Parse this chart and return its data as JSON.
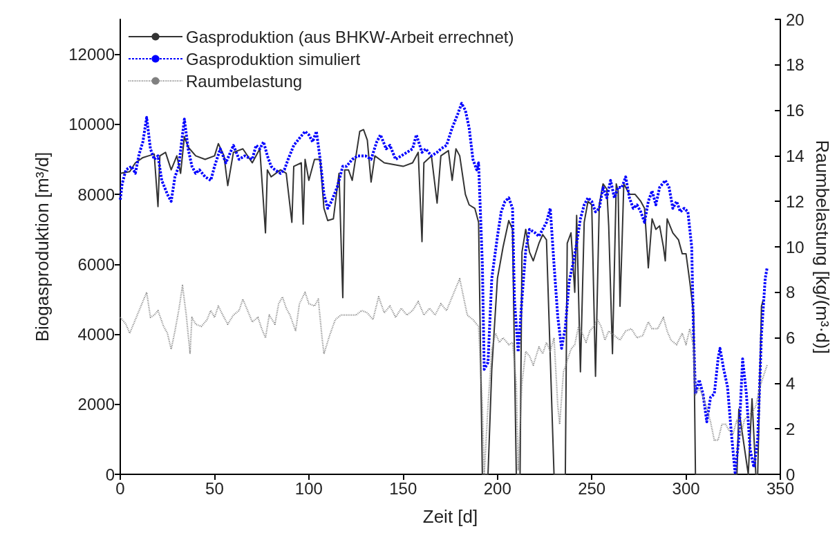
{
  "chart_data": {
    "type": "line",
    "xlabel": "Zeit [d]",
    "ylabel": "Biogasproduktion [m³/d]",
    "y2label": "Raumbelastung [kg/(m³·d)]",
    "xlim": [
      0,
      350
    ],
    "xticks": [
      0,
      50,
      100,
      150,
      200,
      250,
      300,
      350
    ],
    "ylim": [
      0,
      13000
    ],
    "yticks": [
      0,
      2000,
      4000,
      6000,
      8000,
      10000,
      12000
    ],
    "y2lim": [
      0,
      20
    ],
    "y2ticks": [
      0,
      2,
      4,
      6,
      8,
      10,
      12,
      14,
      16,
      18,
      20
    ],
    "grid": false,
    "legend": "top left",
    "marker": "none",
    "series": [
      {
        "name": "Gasproduktion (aus BHKW-Arbeit errechnet)",
        "color": "#333333",
        "line_style": "solid",
        "x": [
          0,
          5,
          8,
          12,
          15,
          18,
          20,
          21,
          24,
          27,
          30,
          32,
          34,
          36,
          40,
          45,
          50,
          52,
          55,
          57,
          60,
          65,
          70,
          74,
          77,
          78,
          80,
          85,
          88,
          91,
          92,
          96,
          97,
          98,
          100,
          103,
          106,
          108,
          110,
          113,
          116,
          118,
          119,
          121,
          123,
          125,
          127,
          129,
          131,
          133,
          135,
          140,
          145,
          150,
          155,
          158,
          160,
          161,
          165,
          168,
          170,
          174,
          176,
          178,
          180,
          183,
          185,
          188,
          190,
          192,
          195,
          197,
          200,
          203,
          206,
          208,
          210,
          212,
          213,
          215,
          217,
          219,
          222,
          224,
          226,
          230,
          232,
          236,
          237,
          239,
          241,
          242,
          244,
          246,
          248,
          250,
          252,
          254,
          256,
          258,
          259,
          261,
          263,
          264,
          265,
          266,
          267,
          270,
          273,
          276,
          278,
          280,
          282,
          284,
          286,
          288,
          289,
          290,
          293,
          296,
          298,
          300,
          302,
          304,
          305,
          327,
          328,
          333,
          335,
          337,
          338,
          340,
          341
        ],
        "values": [
          8600,
          8650,
          8900,
          9050,
          9100,
          9150,
          7650,
          9100,
          9200,
          8700,
          9100,
          8600,
          9650,
          9350,
          9100,
          9000,
          9100,
          9450,
          9100,
          8250,
          9200,
          9300,
          8900,
          9300,
          6900,
          8700,
          8500,
          8700,
          8600,
          7200,
          8800,
          8900,
          7150,
          9000,
          8400,
          9000,
          9000,
          7600,
          7250,
          7300,
          8600,
          5050,
          8700,
          8700,
          8400,
          9100,
          9800,
          9850,
          9550,
          8350,
          9100,
          8900,
          8850,
          8800,
          8900,
          9200,
          6650,
          8900,
          9100,
          7750,
          9100,
          9250,
          8400,
          9300,
          9100,
          8000,
          7700,
          7600,
          7200,
          0,
          0,
          3000,
          5600,
          6500,
          7250,
          7000,
          0,
          0,
          6350,
          7000,
          6350,
          6100,
          6600,
          6850,
          6700,
          0,
          0,
          0,
          6600,
          6900,
          5200,
          7400,
          2930,
          7200,
          7800,
          7700,
          2800,
          7700,
          8300,
          8150,
          7100,
          3450,
          8300,
          8100,
          4800,
          6500,
          8300,
          8000,
          8000,
          7800,
          7600,
          5900,
          7300,
          7000,
          7100,
          6500,
          6100,
          7300,
          6900,
          6700,
          6300,
          6300,
          5500,
          4600,
          0,
          0,
          1860,
          0,
          2160,
          0,
          0,
          4800,
          5000
        ]
      },
      {
        "name": "Gasproduktion simuliert",
        "color": "#0000ff",
        "line_style": "dashed",
        "x": [
          0,
          1,
          3,
          6,
          8,
          10,
          12,
          14,
          16,
          18,
          20,
          22,
          25,
          27,
          29,
          31,
          33,
          34,
          36,
          38,
          40,
          42,
          45,
          48,
          50,
          53,
          56,
          60,
          63,
          66,
          70,
          72,
          74,
          76,
          78,
          80,
          82,
          85,
          87,
          89,
          92,
          95,
          98,
          100,
          102,
          104,
          106,
          108,
          110,
          112,
          115,
          118,
          120,
          123,
          126,
          130,
          133,
          136,
          138,
          141,
          143,
          146,
          149,
          152,
          155,
          157,
          160,
          162,
          165,
          168,
          170,
          173,
          176,
          179,
          181,
          183,
          185,
          187,
          189,
          190,
          192,
          193,
          195,
          197,
          200,
          202,
          204,
          206,
          208,
          209,
          211,
          213,
          215,
          217,
          220,
          222,
          224,
          226,
          228,
          230,
          232,
          234,
          236,
          238,
          240,
          242,
          244,
          246,
          248,
          250,
          252,
          254,
          256,
          258,
          260,
          262,
          264,
          266,
          268,
          270,
          272,
          274,
          276,
          278,
          280,
          282,
          284,
          286,
          289,
          291,
          293,
          295,
          297,
          299,
          301,
          303,
          304,
          305,
          307,
          309,
          311,
          313,
          315,
          317,
          318,
          320,
          322,
          324,
          326,
          328,
          330,
          332,
          334,
          336,
          338,
          340,
          342,
          343
        ],
        "values": [
          7850,
          8300,
          8700,
          8800,
          8600,
          9150,
          9500,
          10200,
          9300,
          9000,
          9100,
          8400,
          8000,
          7800,
          8500,
          8800,
          9700,
          10150,
          9300,
          8800,
          8600,
          8700,
          8500,
          8400,
          8800,
          9300,
          8900,
          9400,
          9000,
          9100,
          9000,
          9400,
          9300,
          9500,
          9100,
          8800,
          8700,
          8600,
          8700,
          9000,
          9400,
          9600,
          9800,
          9700,
          9500,
          9800,
          9000,
          8000,
          7600,
          7800,
          8200,
          8800,
          8800,
          9000,
          9100,
          9100,
          9000,
          9500,
          9700,
          9300,
          9400,
          9000,
          9100,
          9200,
          9300,
          9700,
          9200,
          9300,
          9100,
          9200,
          9300,
          9400,
          9900,
          10300,
          10600,
          10400,
          9900,
          9000,
          8700,
          8900,
          6000,
          3000,
          3200,
          5600,
          6800,
          7500,
          7800,
          7900,
          7600,
          5000,
          3500,
          5000,
          6400,
          7000,
          6900,
          6800,
          7000,
          7200,
          7600,
          6000,
          4500,
          3600,
          4200,
          5500,
          6000,
          6600,
          7300,
          7700,
          7900,
          7800,
          7500,
          7600,
          8200,
          7900,
          8400,
          7900,
          8200,
          8200,
          8500,
          7900,
          7600,
          7700,
          7500,
          7200,
          7800,
          8100,
          7700,
          8200,
          8400,
          8200,
          7600,
          7800,
          7500,
          7600,
          7500,
          6500,
          4000,
          2300,
          2700,
          2300,
          1500,
          2200,
          2300,
          3300,
          3600,
          3000,
          2500,
          1200,
          50,
          1000,
          3300,
          2300,
          700,
          200,
          1000,
          4000,
          5600,
          5900
        ]
      },
      {
        "name": "Raumbelastung",
        "color": "#808080",
        "line_style": "dotted",
        "axis": "y2",
        "x": [
          0,
          3,
          5,
          8,
          12,
          14,
          16,
          18,
          20,
          23,
          25,
          27,
          29,
          31,
          33,
          35,
          37,
          38,
          40,
          43,
          46,
          48,
          50,
          52,
          55,
          57,
          60,
          63,
          65,
          67,
          70,
          73,
          75,
          77,
          79,
          82,
          84,
          86,
          88,
          90,
          93,
          95,
          98,
          100,
          103,
          105,
          107,
          108,
          111,
          114,
          117,
          120,
          123,
          125,
          128,
          131,
          134,
          137,
          140,
          143,
          146,
          149,
          152,
          155,
          158,
          161,
          164,
          167,
          170,
          173,
          176,
          178,
          180,
          182,
          184,
          187,
          190,
          192,
          193,
          195,
          197,
          199,
          201,
          203,
          206,
          208,
          210,
          211,
          213,
          215,
          217,
          219,
          222,
          224,
          226,
          228,
          230,
          232,
          233,
          235,
          237,
          239,
          241,
          243,
          245,
          247,
          249,
          251,
          253,
          255,
          257,
          259,
          262,
          265,
          268,
          271,
          274,
          277,
          280,
          282,
          285,
          288,
          290,
          292,
          295,
          298,
          300,
          302,
          304,
          305,
          307,
          309,
          311,
          313,
          315,
          317,
          319,
          321,
          323,
          325,
          327,
          329,
          331,
          333,
          335,
          337,
          339,
          341,
          343
        ],
        "values": [
          6.9,
          6.6,
          6.2,
          6.8,
          7.6,
          8.0,
          6.9,
          7.0,
          7.2,
          6.5,
          6.2,
          5.5,
          6.3,
          7.2,
          8.3,
          7.0,
          5.3,
          6.9,
          6.6,
          6.5,
          6.8,
          7.2,
          6.9,
          7.4,
          6.9,
          6.6,
          7.0,
          7.2,
          7.7,
          7.3,
          6.7,
          6.9,
          6.4,
          6.0,
          7.0,
          6.6,
          7.5,
          7.8,
          7.3,
          7.0,
          6.3,
          7.5,
          8.0,
          7.5,
          7.4,
          7.7,
          6.0,
          5.3,
          6.1,
          6.8,
          7.0,
          7.0,
          7.0,
          7.0,
          7.2,
          7.1,
          6.8,
          7.8,
          7.1,
          7.4,
          6.9,
          7.3,
          7.0,
          7.2,
          7.6,
          7.0,
          7.3,
          7.0,
          7.5,
          7.2,
          7.8,
          8.2,
          8.6,
          7.8,
          7.0,
          6.8,
          6.5,
          3.0,
          0,
          3.0,
          5.5,
          6.2,
          5.8,
          6.0,
          5.7,
          5.8,
          4.0,
          0.2,
          4.0,
          5.4,
          5.2,
          4.8,
          5.6,
          5.3,
          5.8,
          5.4,
          6.0,
          3.0,
          2.2,
          4.5,
          5.0,
          5.5,
          5.7,
          6.5,
          6.2,
          5.8,
          6.3,
          6.5,
          6.8,
          6.5,
          5.9,
          6.3,
          6.1,
          5.9,
          6.3,
          6.4,
          6.0,
          6.1,
          6.7,
          6.4,
          6.4,
          6.9,
          6.3,
          5.9,
          5.7,
          6.2,
          5.7,
          6.4,
          5.6,
          3.5,
          3.8,
          3.4,
          2.9,
          2.3,
          1.5,
          1.5,
          2.2,
          2.2,
          1.9,
          1.8,
          2.4,
          1.7,
          2.4,
          2.6,
          2.7,
          3.0,
          3.8,
          4.3,
          4.8
        ]
      }
    ]
  }
}
